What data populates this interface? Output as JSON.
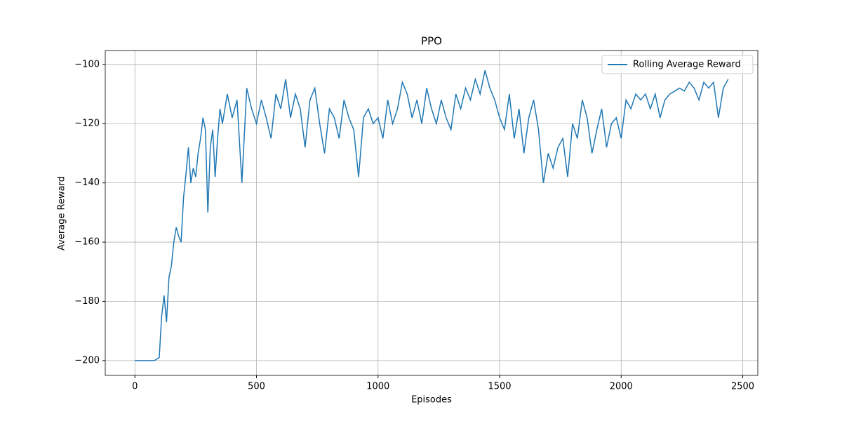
{
  "chart_data": {
    "type": "line",
    "title": "PPO",
    "xlabel": "Episodes",
    "ylabel": "Average Reward",
    "x": [
      0,
      20,
      40,
      60,
      80,
      100,
      110,
      120,
      130,
      140,
      150,
      160,
      170,
      180,
      190,
      200,
      210,
      220,
      230,
      240,
      250,
      260,
      270,
      280,
      290,
      300,
      310,
      320,
      330,
      340,
      350,
      360,
      380,
      400,
      420,
      440,
      460,
      480,
      500,
      520,
      540,
      560,
      580,
      600,
      620,
      640,
      660,
      680,
      700,
      720,
      740,
      760,
      780,
      800,
      820,
      840,
      860,
      880,
      900,
      920,
      940,
      960,
      980,
      1000,
      1020,
      1040,
      1060,
      1080,
      1100,
      1120,
      1140,
      1160,
      1180,
      1200,
      1220,
      1240,
      1260,
      1280,
      1300,
      1320,
      1340,
      1360,
      1380,
      1400,
      1420,
      1440,
      1460,
      1480,
      1500,
      1520,
      1540,
      1560,
      1580,
      1600,
      1620,
      1640,
      1660,
      1680,
      1700,
      1720,
      1740,
      1760,
      1780,
      1800,
      1820,
      1840,
      1860,
      1880,
      1900,
      1920,
      1940,
      1960,
      1980,
      2000,
      2020,
      2040,
      2060,
      2080,
      2100,
      2120,
      2140,
      2160,
      2180,
      2200,
      2220,
      2240,
      2260,
      2280,
      2300,
      2320,
      2340,
      2360,
      2380,
      2400,
      2420,
      2440
    ],
    "series": [
      {
        "name": "Rolling Average Reward",
        "color": "#1f77b4",
        "values": [
          -200,
          -200,
          -200,
          -200,
          -200,
          -199,
          -185,
          -178,
          -187,
          -172,
          -168,
          -160,
          -155,
          -158,
          -160,
          -145,
          -137,
          -128,
          -140,
          -135,
          -138,
          -130,
          -125,
          -118,
          -122,
          -150,
          -128,
          -122,
          -138,
          -125,
          -115,
          -120,
          -110,
          -118,
          -112,
          -140,
          -108,
          -115,
          -120,
          -112,
          -118,
          -125,
          -110,
          -115,
          -105,
          -118,
          -110,
          -115,
          -128,
          -112,
          -108,
          -120,
          -130,
          -115,
          -118,
          -125,
          -112,
          -118,
          -122,
          -138,
          -118,
          -115,
          -120,
          -118,
          -125,
          -112,
          -120,
          -115,
          -106,
          -110,
          -118,
          -112,
          -120,
          -108,
          -115,
          -120,
          -112,
          -118,
          -122,
          -110,
          -115,
          -108,
          -112,
          -105,
          -110,
          -102,
          -108,
          -112,
          -118,
          -122,
          -110,
          -125,
          -115,
          -130,
          -118,
          -112,
          -122,
          -140,
          -130,
          -135,
          -128,
          -125,
          -138,
          -120,
          -125,
          -112,
          -118,
          -130,
          -122,
          -115,
          -128,
          -120,
          -118,
          -125,
          -112,
          -115,
          -110,
          -112,
          -110,
          -115,
          -110,
          -118,
          -112,
          -110,
          -109,
          -108,
          -109,
          -106,
          -108,
          -112,
          -106,
          -108,
          -106,
          -118,
          -108,
          -105
        ]
      }
    ],
    "xlim": [
      -122,
      2562
    ],
    "ylim": [
      -205,
      -95.3
    ],
    "xticks": [
      0,
      500,
      1000,
      1500,
      2000,
      2500
    ],
    "yticks": [
      {
        "value": -200,
        "label": "−200"
      },
      {
        "value": -180,
        "label": "−180"
      },
      {
        "value": -160,
        "label": "−160"
      },
      {
        "value": -140,
        "label": "−140"
      },
      {
        "value": -120,
        "label": "−120"
      },
      {
        "value": -100,
        "label": "−100"
      }
    ],
    "grid": true,
    "legend": "upper right"
  }
}
